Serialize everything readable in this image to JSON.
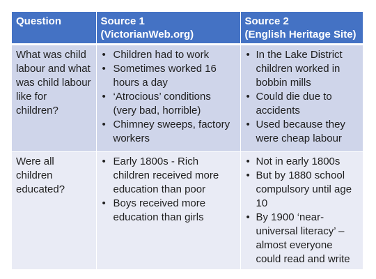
{
  "table": {
    "headers": [
      "Question",
      "Source 1\n(VictorianWeb.org)",
      "Source 2\n(English Heritage Site)"
    ],
    "header_lines": [
      [
        "Question"
      ],
      [
        "Source 1",
        "(VictorianWeb.org)"
      ],
      [
        "Source 2",
        "(English Heritage Site)"
      ]
    ],
    "rows": [
      {
        "question": "What was child labour and what was child labour like for children?",
        "source1": [
          "Children had to work",
          "Sometimes worked 16 hours a day",
          "‘Atrocious’ conditions (very bad, horrible)",
          "Chimney sweeps, factory workers"
        ],
        "source2": [
          "In the Lake District children worked in bobbin mills",
          "Could die due to accidents",
          "Used because they were cheap labour"
        ]
      },
      {
        "question": "Were all children educated?",
        "source1": [
          "Early 1800s - Rich children received more education than poor",
          "Boys received more education than girls"
        ],
        "source2": [
          "Not in early 1800s",
          "But by 1880 school compulsory until age 10",
          "By 1900 ‘near-universal literacy’ – almost everyone could read and write"
        ]
      }
    ],
    "bullet_glyph": "•",
    "colors": {
      "header_bg": "#4472c4",
      "row1_bg": "#cfd5ea",
      "row2_bg": "#e9ebf5",
      "header_text": "#ffffff"
    }
  }
}
